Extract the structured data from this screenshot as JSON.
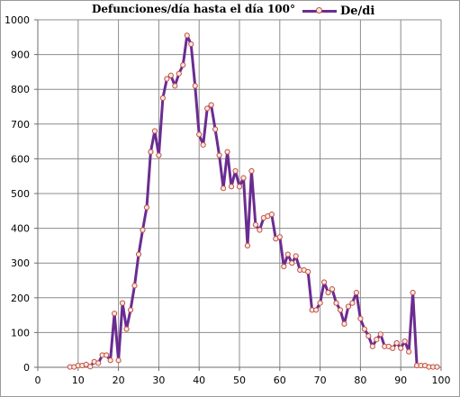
{
  "chart_data": {
    "type": "line",
    "title": "Defunciones/día hasta el día 100°",
    "xlabel": "",
    "ylabel": "",
    "xlim": [
      0,
      100
    ],
    "ylim": [
      0,
      1000
    ],
    "x_ticks": [
      "0",
      "10",
      "20",
      "30",
      "40",
      "50",
      "60",
      "70",
      "80",
      "90",
      "100"
    ],
    "y_ticks": [
      "0",
      "100",
      "200",
      "300",
      "400",
      "500",
      "600",
      "700",
      "800",
      "900",
      "1000"
    ],
    "grid": true,
    "legend_position": "top-right",
    "series": [
      {
        "name": "De/di",
        "color": "#6a2c91",
        "marker_edge": "#c0504d",
        "marker_face": "#fde9d9",
        "x": [
          8,
          9,
          10,
          11,
          12,
          13,
          14,
          15,
          16,
          17,
          18,
          19,
          20,
          21,
          22,
          23,
          24,
          25,
          26,
          27,
          28,
          29,
          30,
          31,
          32,
          33,
          34,
          35,
          36,
          37,
          38,
          39,
          40,
          41,
          42,
          43,
          44,
          45,
          46,
          47,
          48,
          49,
          50,
          51,
          52,
          53,
          54,
          55,
          56,
          57,
          58,
          59,
          60,
          61,
          62,
          63,
          64,
          65,
          66,
          67,
          68,
          69,
          70,
          71,
          72,
          73,
          74,
          75,
          76,
          77,
          78,
          79,
          80,
          81,
          82,
          83,
          84,
          85,
          86,
          87,
          88,
          89,
          90,
          91,
          92,
          93,
          94,
          95,
          96,
          97,
          98,
          99
        ],
        "y": [
          1,
          1,
          5,
          5,
          8,
          2,
          16,
          12,
          35,
          35,
          20,
          155,
          20,
          185,
          110,
          165,
          235,
          325,
          395,
          460,
          620,
          680,
          610,
          775,
          830,
          840,
          810,
          845,
          870,
          955,
          930,
          810,
          670,
          640,
          745,
          755,
          685,
          610,
          515,
          620,
          520,
          565,
          520,
          545,
          350,
          565,
          410,
          395,
          430,
          435,
          440,
          370,
          375,
          290,
          325,
          300,
          320,
          280,
          280,
          275,
          165,
          165,
          185,
          245,
          215,
          225,
          185,
          165,
          125,
          175,
          185,
          215,
          140,
          110,
          90,
          60,
          80,
          95,
          60,
          60,
          55,
          70,
          55,
          75,
          45,
          215,
          5,
          5,
          5,
          1,
          1,
          1
        ]
      }
    ]
  }
}
